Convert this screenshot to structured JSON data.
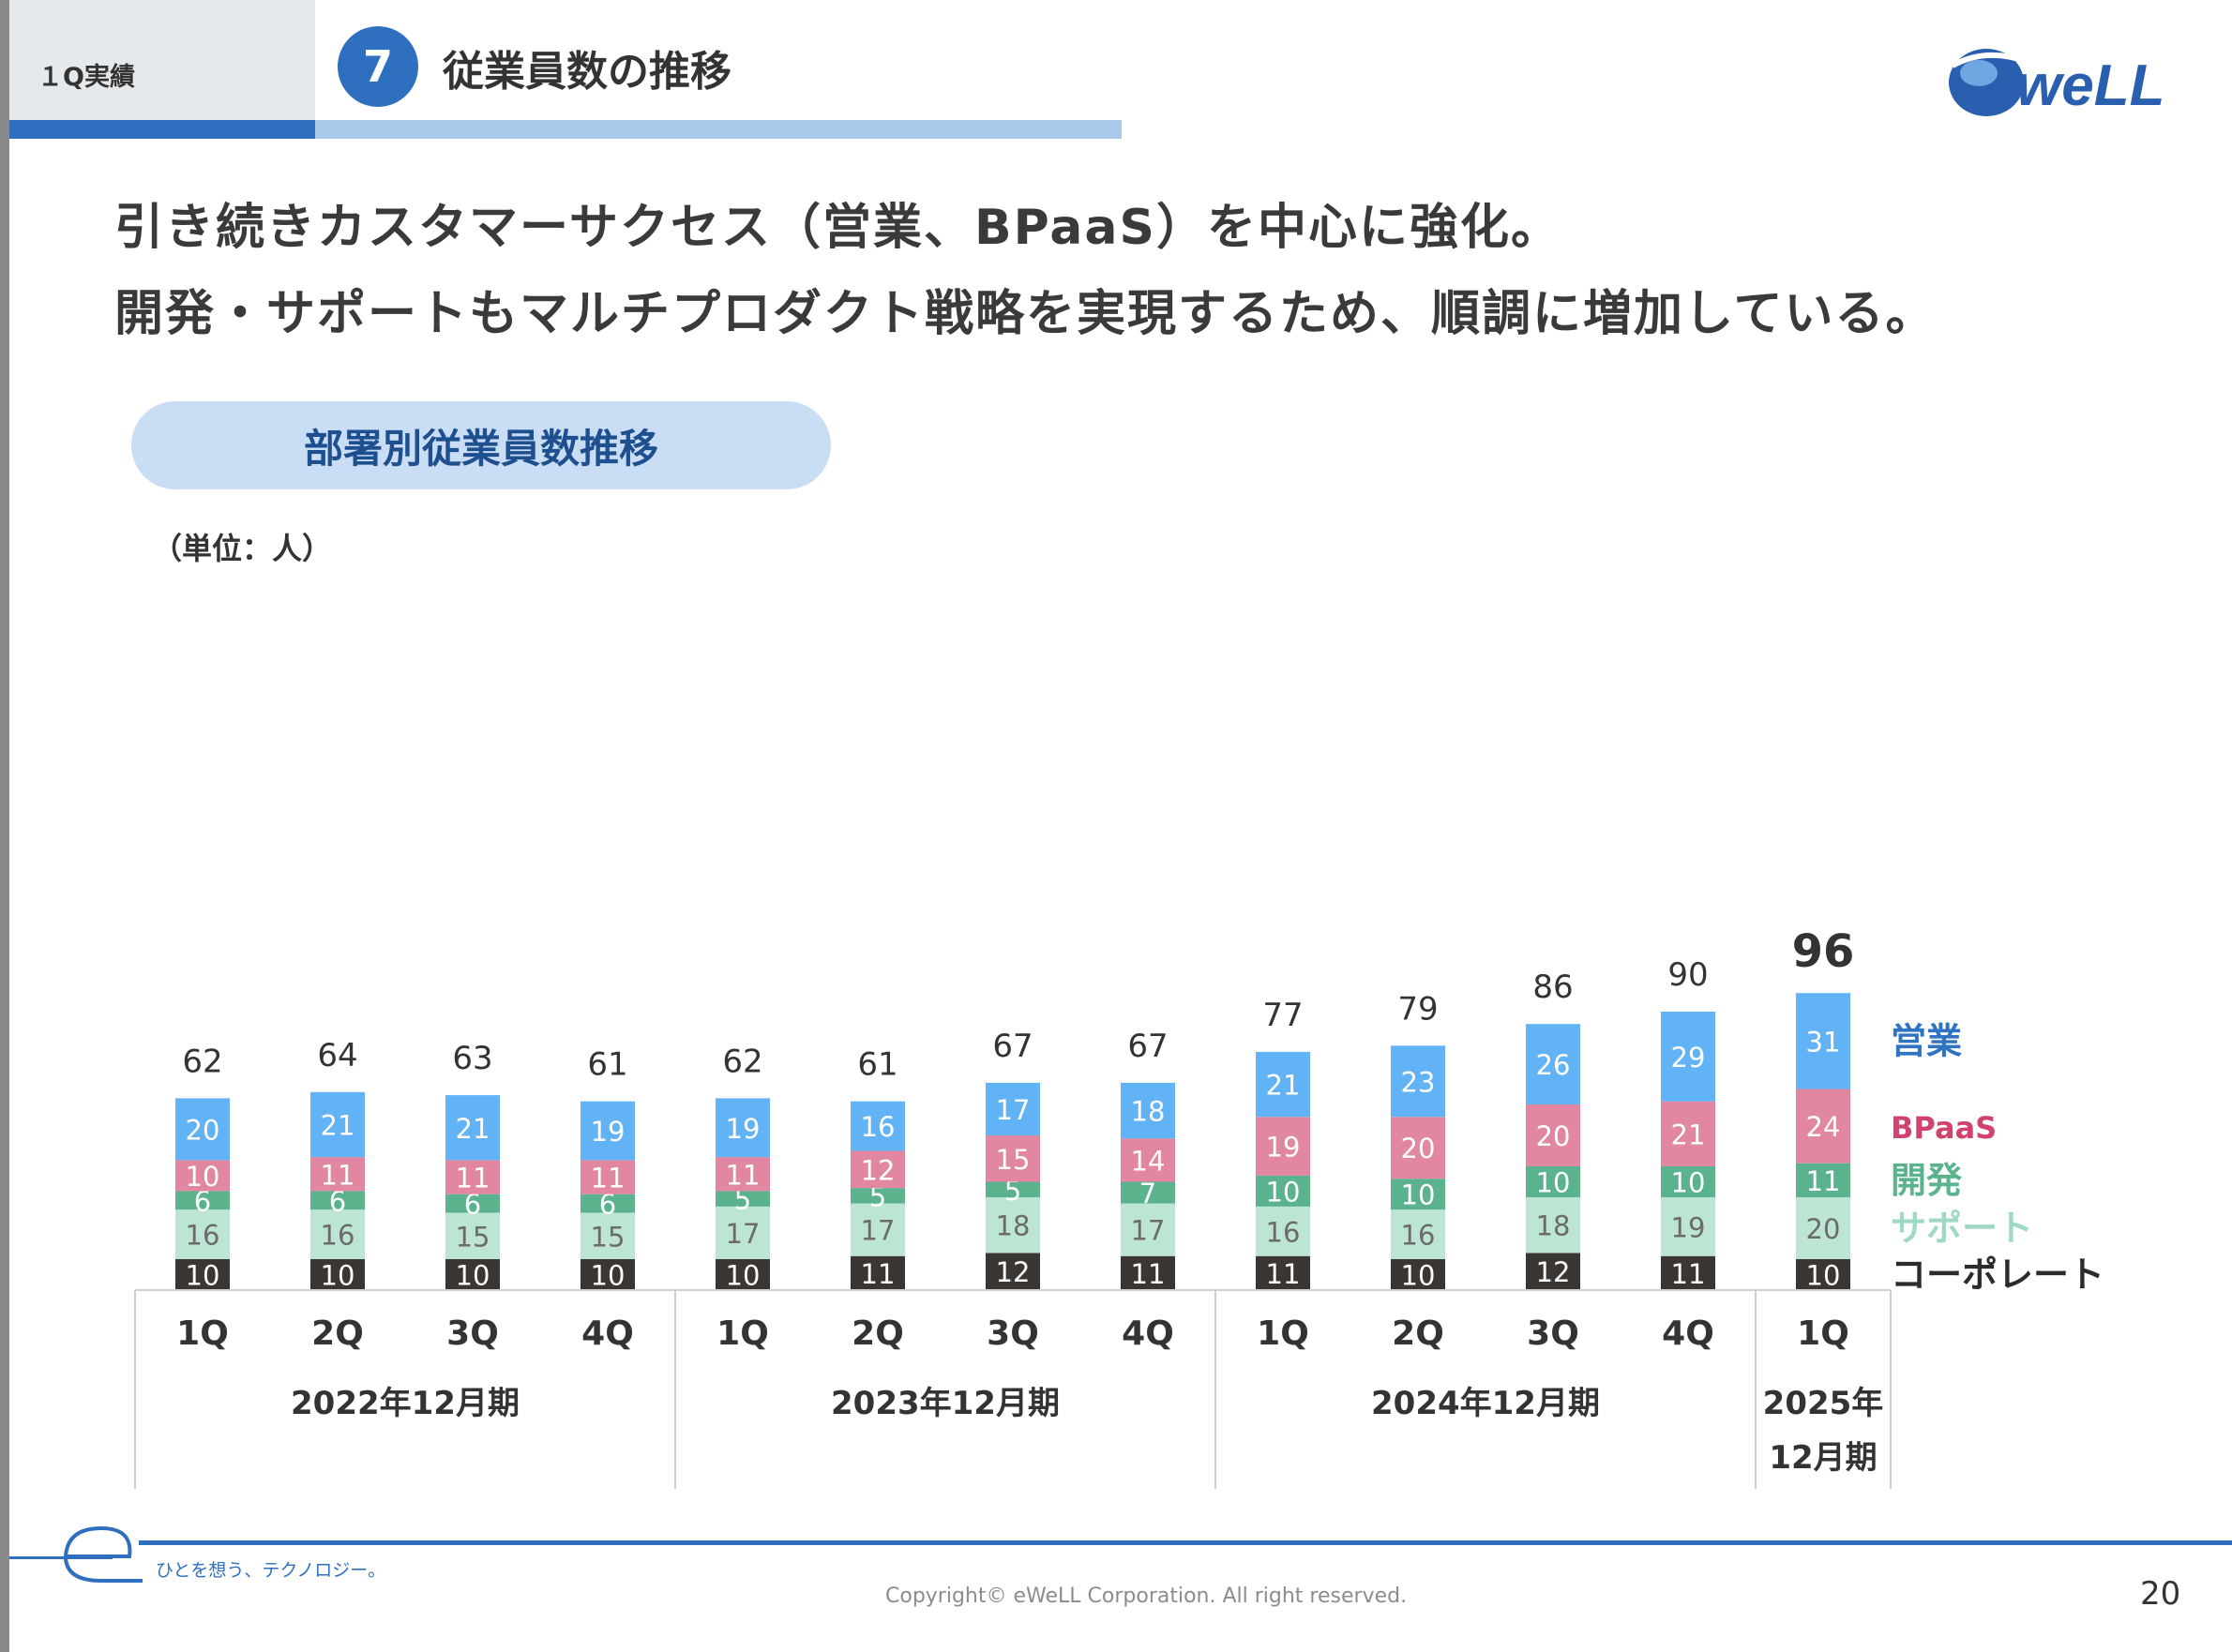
{
  "header": {
    "section": "１Q実績",
    "number": "7",
    "title": "従業員数の推移"
  },
  "headline": {
    "line1": "引き続きカスタマーサクセス（営業、BPaaS）を中心に強化。",
    "line2": "開発・サポートもマルチプロダクト戦略を実現するため、順調に増加している。"
  },
  "footer": {
    "tagline": "ひとを想う、テクノロジー。",
    "copyright": "Copyright© eWeLL Corporation. All right reserved.",
    "page": "20"
  },
  "colors": {
    "sales": "#62b3f5",
    "bpaas": "#e287a2",
    "dev": "#5ab38d",
    "support": "#bde5d4",
    "corporate": "#3a3634",
    "sales_label": "#2e74c2",
    "bpaas_label": "#d0436d",
    "dev_label": "#5ab38d",
    "support_label": "#9fd9c3",
    "corporate_label": "#2c2c2c"
  },
  "chart_data": {
    "type": "bar",
    "stacked": true,
    "title": "部署別従業員数推移",
    "unit": "（単位：人）",
    "categories": [
      "1Q",
      "2Q",
      "3Q",
      "4Q",
      "1Q",
      "2Q",
      "3Q",
      "4Q",
      "1Q",
      "2Q",
      "3Q",
      "4Q",
      "1Q"
    ],
    "groups": [
      {
        "label": "2022年12月期",
        "count": 4
      },
      {
        "label": "2023年12月期",
        "count": 4
      },
      {
        "label": "2024年12月期",
        "count": 4
      },
      {
        "label": "2025年\n12月期",
        "count": 1
      }
    ],
    "series": [
      {
        "name": "コーポレート",
        "key": "corporate",
        "values": [
          10,
          10,
          10,
          10,
          10,
          11,
          12,
          11,
          11,
          10,
          12,
          11,
          10
        ]
      },
      {
        "name": "サポート",
        "key": "support",
        "values": [
          16,
          16,
          15,
          15,
          17,
          17,
          18,
          17,
          16,
          16,
          18,
          19,
          20
        ]
      },
      {
        "name": "開発",
        "key": "dev",
        "values": [
          6,
          6,
          6,
          6,
          5,
          5,
          5,
          7,
          10,
          10,
          10,
          10,
          11
        ]
      },
      {
        "name": "BPaaS",
        "key": "bpaas",
        "values": [
          10,
          11,
          11,
          11,
          11,
          12,
          15,
          14,
          19,
          20,
          20,
          21,
          24
        ]
      },
      {
        "name": "営業",
        "key": "sales",
        "values": [
          20,
          21,
          21,
          19,
          19,
          16,
          17,
          18,
          21,
          23,
          26,
          29,
          31
        ]
      }
    ],
    "totals": [
      62,
      64,
      63,
      61,
      62,
      61,
      67,
      67,
      77,
      79,
      86,
      90,
      96
    ],
    "legend": "right"
  }
}
